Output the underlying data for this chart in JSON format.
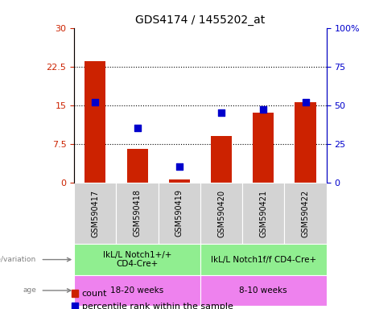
{
  "title": "GDS4174 / 1455202_at",
  "samples": [
    "GSM590417",
    "GSM590418",
    "GSM590419",
    "GSM590420",
    "GSM590421",
    "GSM590422"
  ],
  "counts": [
    23.5,
    6.5,
    0.5,
    9.0,
    13.5,
    15.5
  ],
  "percentile_ranks": [
    52,
    35,
    10,
    45,
    47,
    52
  ],
  "ylim_left": [
    0,
    30
  ],
  "ylim_right": [
    0,
    100
  ],
  "yticks_left": [
    0,
    7.5,
    15,
    22.5,
    30
  ],
  "yticks_right": [
    0,
    25,
    50,
    75,
    100
  ],
  "ytick_labels_left": [
    "0",
    "7.5",
    "15",
    "22.5",
    "30"
  ],
  "ytick_labels_right": [
    "0",
    "25",
    "50",
    "75",
    "100%"
  ],
  "bar_color": "#cc2200",
  "dot_color": "#0000cc",
  "group1_label": "IkL/L Notch1+/+\nCD4-Cre+",
  "group2_label": "IkL/L Notch1f/f CD4-Cre+",
  "age1": "18-20 weeks",
  "age2": "8-10 weeks",
  "genotype_bg": "#90ee90",
  "age_bg": "#ee82ee",
  "sample_bg": "#d3d3d3",
  "bar_width": 0.5,
  "dot_size": 30,
  "left_label_color": "#cc2200",
  "right_label_color": "#0000cc",
  "title_fontsize": 10,
  "tick_fontsize": 8,
  "sample_fontsize": 7,
  "annot_fontsize": 7.5,
  "legend_fontsize": 8,
  "left_margin_text_color": "gray"
}
